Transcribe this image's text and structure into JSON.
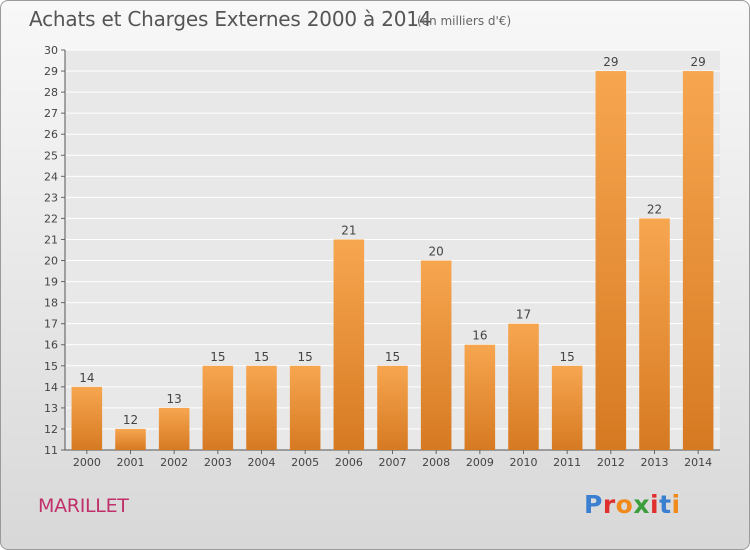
{
  "header": {
    "title": "Achats et Charges Externes 2000 à 2014",
    "subtitle": "(en milliers d'€)"
  },
  "footer": {
    "commune": "MARILLET",
    "logo_text": "Proxiti"
  },
  "colors": {
    "bar_top": "#f7a650",
    "bar_bottom": "#d67a22",
    "accent": "#c0306a",
    "logo_letters": [
      "#3a7fd0",
      "#e0302e",
      "#f08a1c",
      "#3a9e3a",
      "#e0302e",
      "#3a7fd0",
      "#f08a1c"
    ]
  },
  "chart_data": {
    "type": "bar",
    "title": "Achats et Charges Externes 2000 à 2014",
    "subtitle": "(en milliers d'€)",
    "categories": [
      "2000",
      "2001",
      "2002",
      "2003",
      "2004",
      "2005",
      "2006",
      "2007",
      "2008",
      "2009",
      "2010",
      "2011",
      "2012",
      "2013",
      "2014"
    ],
    "values": [
      14,
      12,
      13,
      15,
      15,
      15,
      21,
      15,
      20,
      16,
      17,
      15,
      29,
      22,
      29
    ],
    "ylim": [
      11,
      30
    ],
    "yticks": [
      11,
      12,
      13,
      14,
      15,
      16,
      17,
      18,
      19,
      20,
      21,
      22,
      23,
      24,
      25,
      26,
      27,
      28,
      29,
      30
    ],
    "grid": true,
    "data_labels": true
  }
}
